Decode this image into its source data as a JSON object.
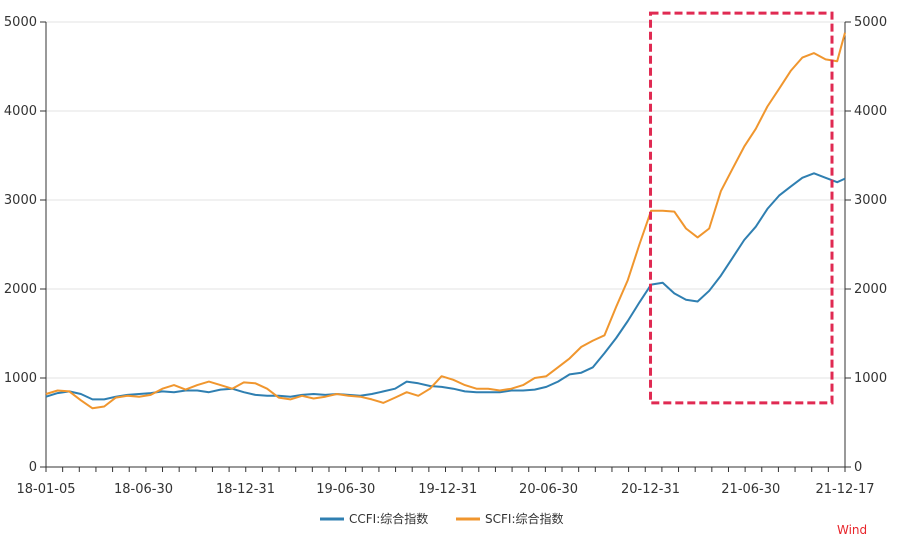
{
  "chart_data": {
    "type": "line",
    "x_dates": [
      "18-01-05",
      "18-01-26",
      "18-02-16",
      "18-03-09",
      "18-03-30",
      "18-04-20",
      "18-05-11",
      "18-06-01",
      "18-06-22",
      "18-07-13",
      "18-08-03",
      "18-08-24",
      "18-09-14",
      "18-10-05",
      "18-10-26",
      "18-11-16",
      "18-12-07",
      "18-12-28",
      "19-01-18",
      "19-02-08",
      "19-03-01",
      "19-03-22",
      "19-04-12",
      "19-05-03",
      "19-05-24",
      "19-06-14",
      "19-07-05",
      "19-07-26",
      "19-08-16",
      "19-09-06",
      "19-09-27",
      "19-10-18",
      "19-11-08",
      "19-11-29",
      "19-12-20",
      "20-01-10",
      "20-01-31",
      "20-02-21",
      "20-03-13",
      "20-04-03",
      "20-04-24",
      "20-05-15",
      "20-06-05",
      "20-06-26",
      "20-07-17",
      "20-08-07",
      "20-08-28",
      "20-09-18",
      "20-10-09",
      "20-10-30",
      "20-11-20",
      "20-12-11",
      "21-01-01",
      "21-01-22",
      "21-02-12",
      "21-03-05",
      "21-03-26",
      "21-04-16",
      "21-05-07",
      "21-05-28",
      "21-06-18",
      "21-07-09",
      "21-07-30",
      "21-08-20",
      "21-09-10",
      "21-10-01",
      "21-10-22",
      "21-11-12",
      "21-12-03",
      "21-12-17"
    ],
    "series": [
      {
        "name": "CCFI:综合指数",
        "color": "#2f7fb1",
        "values": [
          790,
          830,
          850,
          820,
          760,
          760,
          790,
          810,
          820,
          830,
          850,
          840,
          860,
          860,
          840,
          870,
          880,
          840,
          810,
          800,
          800,
          790,
          810,
          820,
          810,
          820,
          810,
          800,
          820,
          850,
          880,
          960,
          940,
          910,
          900,
          880,
          850,
          840,
          840,
          840,
          860,
          860,
          870,
          900,
          960,
          1040,
          1060,
          1120,
          1280,
          1450,
          1640,
          1850,
          2050,
          2070,
          1950,
          1880,
          1860,
          1980,
          2150,
          2350,
          2550,
          2700,
          2900,
          3050,
          3150,
          3250,
          3300,
          3250,
          3200,
          3240
        ]
      },
      {
        "name": "SCFI:综合指数",
        "color": "#f0962e",
        "values": [
          820,
          860,
          850,
          750,
          660,
          680,
          780,
          800,
          790,
          810,
          880,
          920,
          870,
          920,
          960,
          920,
          880,
          950,
          940,
          880,
          780,
          760,
          800,
          770,
          790,
          820,
          800,
          790,
          760,
          720,
          780,
          840,
          800,
          880,
          1020,
          980,
          920,
          880,
          880,
          860,
          880,
          920,
          1000,
          1020,
          1120,
          1220,
          1350,
          1420,
          1480,
          1800,
          2100,
          2500,
          2880,
          2880,
          2870,
          2680,
          2580,
          2680,
          3100,
          3350,
          3600,
          3800,
          4050,
          4250,
          4450,
          4600,
          4650,
          4580,
          4560,
          4880
        ]
      }
    ],
    "xticks": [
      "18-01-05",
      "18-06-30",
      "18-12-31",
      "19-06-30",
      "19-12-31",
      "20-06-30",
      "20-12-31",
      "21-06-30",
      "21-12-17"
    ],
    "yticks_left": [
      "0",
      "1000",
      "2000",
      "3000",
      "4000",
      "5000"
    ],
    "yticks_right": [
      "0",
      "1000",
      "2000",
      "3000",
      "4000",
      "5000"
    ],
    "ylim": [
      0,
      5000
    ],
    "grid": true,
    "legend_position": "bottom-center",
    "highlight_box": {
      "x_start": "20-12-31",
      "x_end": "21-12-17",
      "y_range": [
        720,
        5100
      ],
      "color": "#e02a52",
      "style": "dashed"
    },
    "watermark": "Wind"
  }
}
